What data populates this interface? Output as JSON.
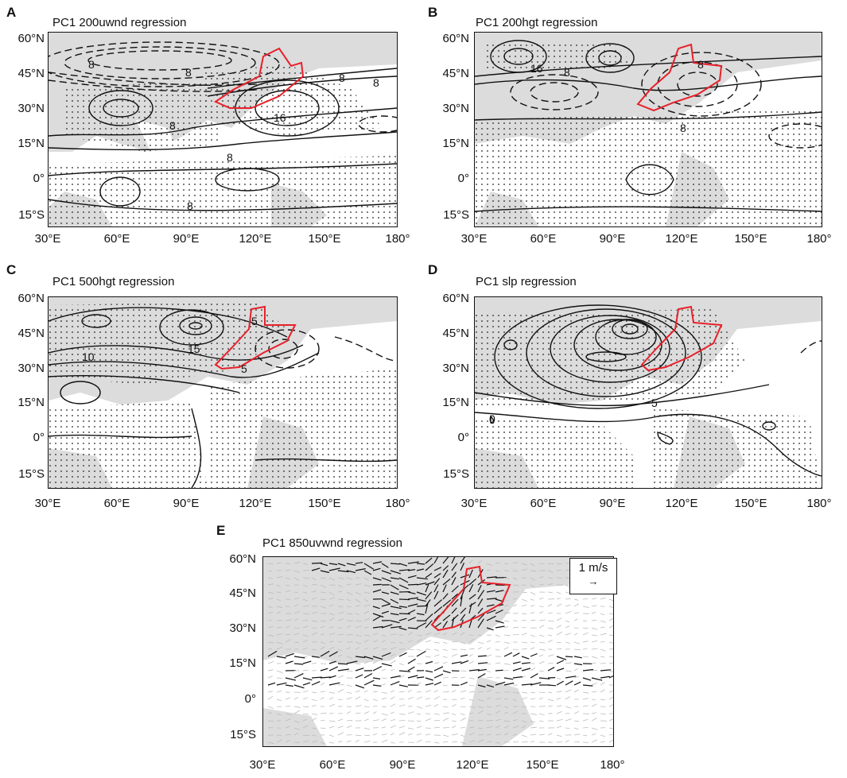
{
  "colors": {
    "land": "#dcdcdc",
    "contour": "#111111",
    "boundary": "#e8202a",
    "stipple": "#222222"
  },
  "lat_labels": [
    "60°N",
    "45°N",
    "30°N",
    "15°N",
    "0°",
    "15°S"
  ],
  "lon_labels": [
    "30°E",
    "60°E",
    "90°E",
    "120°E",
    "150°E",
    "180°"
  ],
  "panels": {
    "A": {
      "letter": "A",
      "title": "PC1 200uwnd regression",
      "labels": [
        "8",
        "8",
        "8",
        "8",
        "16",
        "8",
        "8",
        "8"
      ]
    },
    "B": {
      "letter": "B",
      "title": "PC1 200hgt regression",
      "labels": [
        "16",
        "8",
        "8",
        "8"
      ]
    },
    "C": {
      "letter": "C",
      "title": "PC1 500hgt regression",
      "labels": [
        "10",
        "15",
        "5",
        "5"
      ]
    },
    "D": {
      "letter": "D",
      "title": "PC1 slp regression",
      "labels": [
        "5",
        "0"
      ]
    },
    "E": {
      "letter": "E",
      "title": "PC1 850uvwnd regression",
      "legend": "1 m/s"
    }
  }
}
